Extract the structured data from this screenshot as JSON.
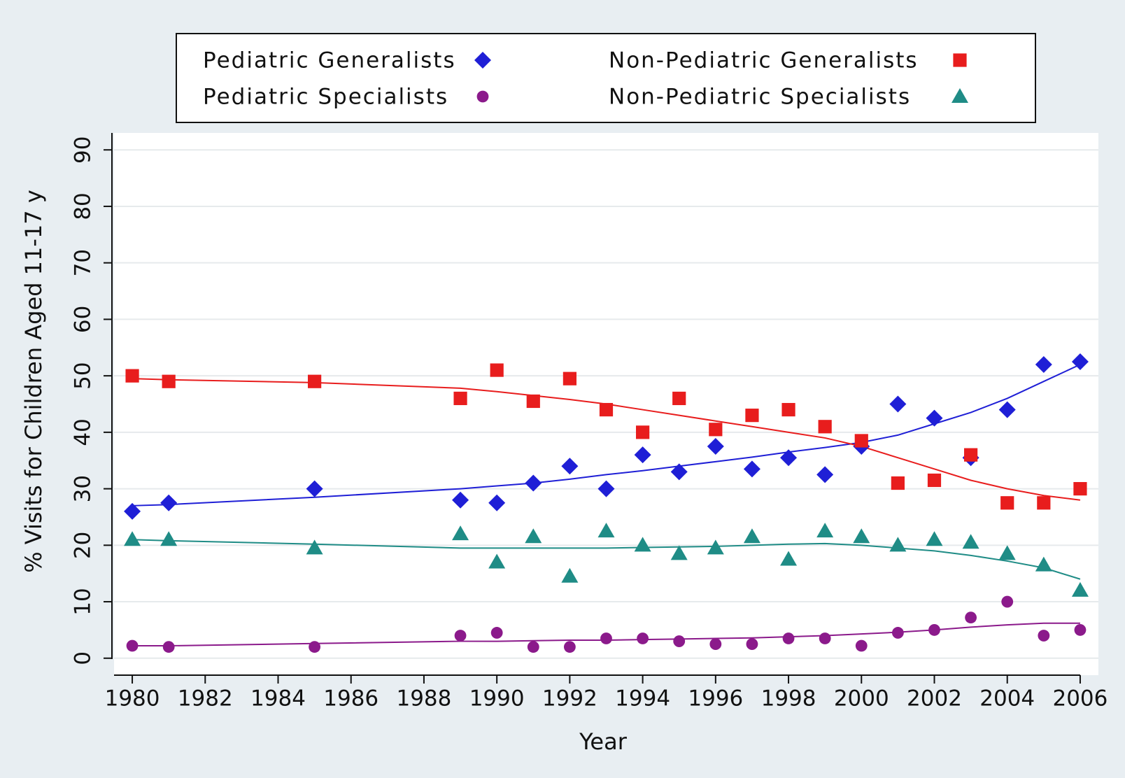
{
  "chart_data": {
    "type": "scatter",
    "x_label": "Year",
    "y_label": "% Visits for Children Aged 11-17 y",
    "x": [
      1980,
      1981,
      1985,
      1989,
      1990,
      1991,
      1992,
      1993,
      1994,
      1995,
      1996,
      1997,
      1998,
      1999,
      2000,
      2001,
      2002,
      2003,
      2004,
      2005,
      2006
    ],
    "series": [
      {
        "name": "Pediatric Generalists",
        "color": "#1f1fd6",
        "marker": "diamond",
        "values": [
          26,
          27.5,
          30,
          28,
          27.5,
          31,
          34,
          30,
          36,
          33,
          37.5,
          33.5,
          35.5,
          32.5,
          37.5,
          45,
          42.5,
          35.5,
          44,
          52,
          52.5
        ],
        "trend": [
          27,
          27.2,
          28.5,
          30,
          30.5,
          31,
          31.7,
          32.5,
          33.2,
          34,
          34.8,
          35.6,
          36.5,
          37.3,
          38.2,
          39.5,
          41.5,
          43.5,
          46,
          49,
          52
        ]
      },
      {
        "name": "Pediatric Specialists",
        "color": "#8b1a8b",
        "marker": "circle",
        "values": [
          2.2,
          2,
          2,
          4,
          4.5,
          2,
          2,
          3.5,
          3.5,
          3,
          2.5,
          2.5,
          3.5,
          3.5,
          2.2,
          4.5,
          5,
          7.2,
          10,
          4,
          5
        ],
        "trend": [
          2.2,
          2.2,
          2.6,
          3,
          3,
          3.1,
          3.2,
          3.2,
          3.3,
          3.4,
          3.5,
          3.6,
          3.8,
          4,
          4.3,
          4.6,
          5,
          5.5,
          5.9,
          6.2,
          6.2
        ]
      },
      {
        "name": "Non-Pediatric Generalists",
        "color": "#e81d1d",
        "marker": "square",
        "values": [
          50,
          49,
          49,
          46,
          51,
          45.5,
          49.5,
          44,
          40,
          46,
          40.5,
          43,
          44,
          41,
          38.5,
          31,
          31.5,
          36,
          27.5,
          27.5,
          30
        ],
        "trend": [
          49.5,
          49.3,
          48.8,
          47.8,
          47.2,
          46.5,
          45.8,
          45,
          44,
          43,
          42,
          41,
          40,
          39,
          37.5,
          35.5,
          33.5,
          31.5,
          30,
          28.8,
          28
        ]
      },
      {
        "name": "Non-Pediatric Specialists",
        "color": "#1f8c86",
        "marker": "triangle",
        "values": [
          21,
          21,
          19.5,
          22,
          17,
          21.5,
          14.5,
          22.5,
          20,
          18.5,
          19.5,
          21.5,
          17.5,
          22.5,
          21.5,
          20,
          21,
          20.5,
          18.5,
          16.5,
          12
        ],
        "trend": [
          21,
          20.8,
          20.2,
          19.5,
          19.5,
          19.5,
          19.5,
          19.5,
          19.6,
          19.7,
          19.8,
          20,
          20.2,
          20.3,
          20,
          19.5,
          19,
          18.2,
          17.2,
          16,
          14
        ]
      }
    ],
    "xlim": [
      1979.5,
      2006.5
    ],
    "ylim": [
      -3,
      93
    ],
    "xticks": [
      1980,
      1982,
      1984,
      1986,
      1988,
      1990,
      1992,
      1994,
      1996,
      1998,
      2000,
      2002,
      2004,
      2006
    ],
    "yticks": [
      0,
      10,
      20,
      30,
      40,
      50,
      60,
      70,
      80,
      90
    ],
    "grid": true,
    "legend": "top"
  }
}
